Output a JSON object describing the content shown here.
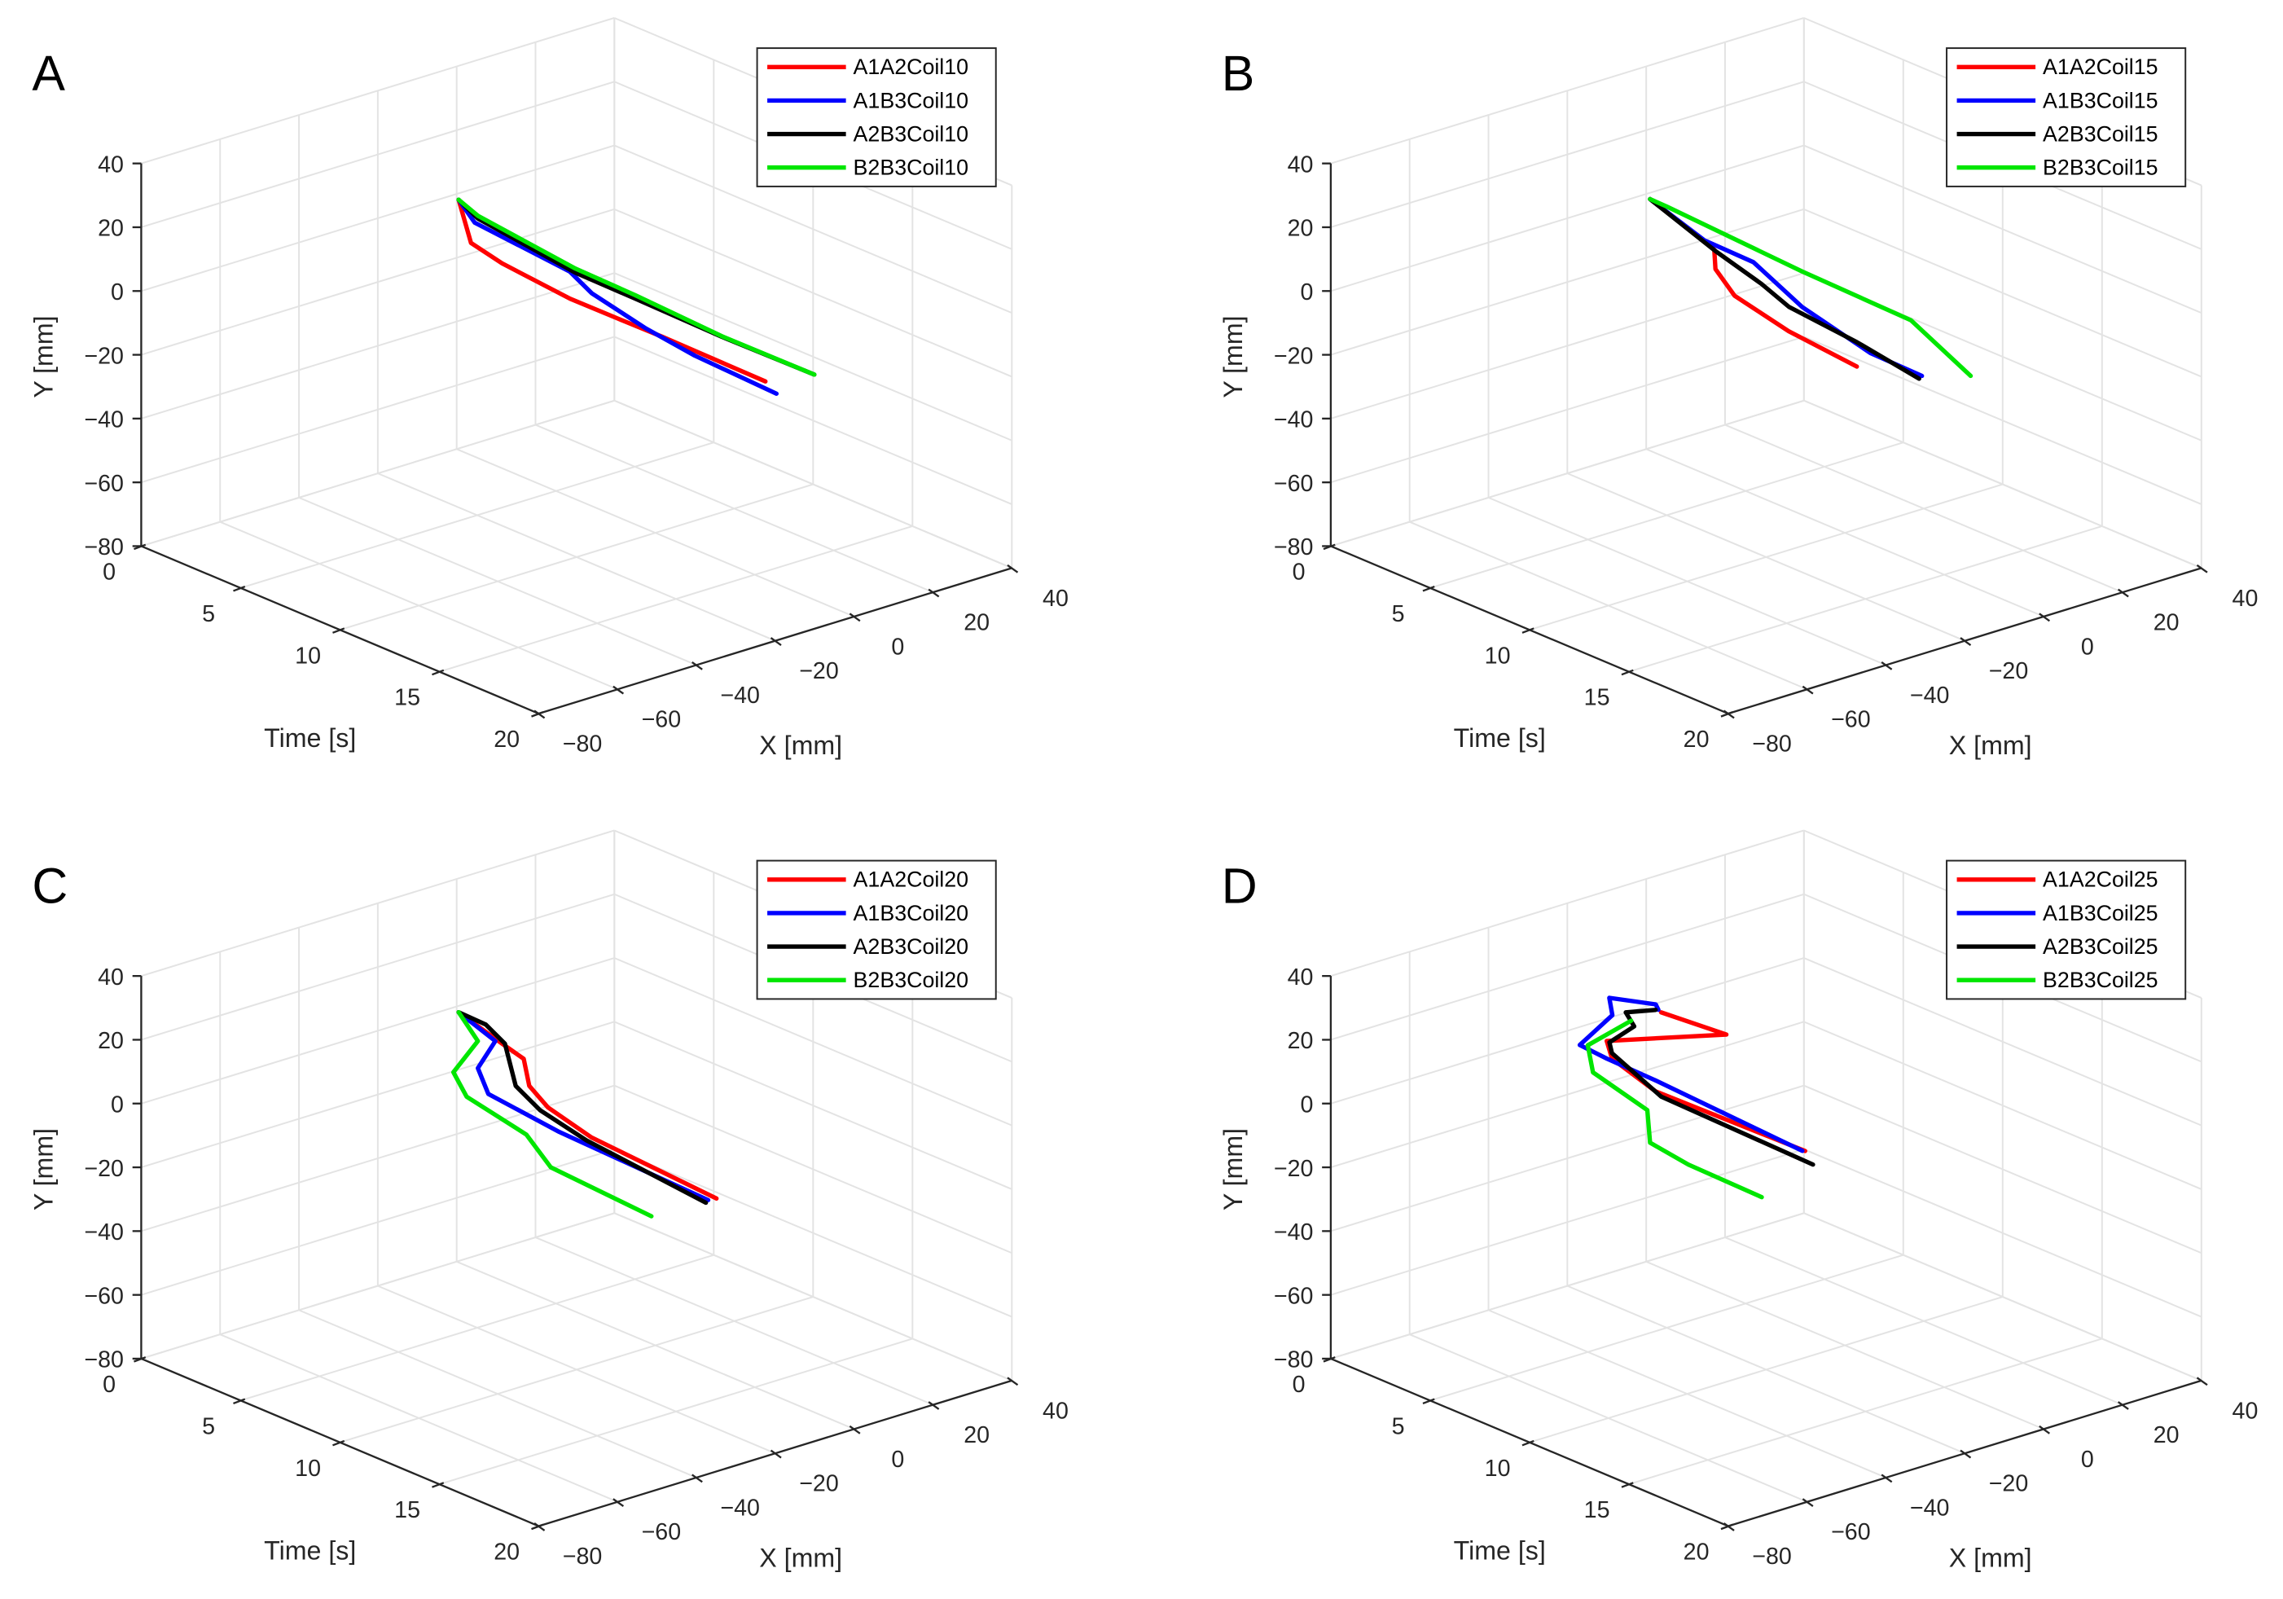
{
  "chart_data": [
    {
      "panel_label": "A",
      "type": "line3d",
      "xlabel": "X [mm]",
      "ylabel": "Y [mm]",
      "tlabel": "Time [s]",
      "tlim": [
        0,
        20
      ],
      "xlim": [
        -80,
        40
      ],
      "ylim": [
        -80,
        40
      ],
      "t_ticks": [
        "0",
        "5",
        "10",
        "15",
        "20"
      ],
      "x_ticks": [
        "−80",
        "−60",
        "−40",
        "−20",
        "0",
        "20",
        "40"
      ],
      "y_ticks": [
        "−80",
        "−60",
        "−40",
        "−20",
        "0",
        "20",
        "40"
      ],
      "grid": true,
      "legend_position": "top-right",
      "series": [
        {
          "name": "A1A2Coil10",
          "color": "#ff0000",
          "t": [
            0,
            0.8,
            2.8,
            7.2,
            10.4,
            13.3,
            20
          ],
          "x": [
            0.5,
            -0.4,
            -2.6,
            -7.5,
            -11.3,
            -14.9,
            -22.5
          ],
          "y": [
            -2,
            -13.1,
            -13.4,
            -11.1,
            -7.6,
            -4.2,
            2.3
          ]
        },
        {
          "name": "A1B3Coil10",
          "color": "#0000ff",
          "t": [
            0,
            1.03,
            7.0,
            8.4,
            11.8,
            14.9,
            20
          ],
          "x": [
            0.5,
            -0.6,
            -6.6,
            -8.1,
            -11.5,
            -14.7,
            -19.7
          ],
          "y": [
            -2,
            -6.1,
            -3.4,
            -6,
            -6.8,
            -6,
            -2.6
          ]
        },
        {
          "name": "A2B3Coil10",
          "color": "#000000",
          "t": [
            0,
            1.07,
            6.57,
            9.93,
            14.8,
            20
          ],
          "x": [
            0.5,
            0,
            -3,
            -4.8,
            -7.3,
            -10.1
          ],
          "y": [
            -2,
            -4.9,
            -6.3,
            -4.9,
            -3.2,
            -0.3
          ]
        },
        {
          "name": "B2B3Coil10",
          "color": "#00e600",
          "t": [
            0,
            1.07,
            6.57,
            9.93,
            14.8,
            20
          ],
          "x": [
            0.5,
            0,
            -3,
            -4.8,
            -7.3,
            -10.1
          ],
          "y": [
            -2,
            -4,
            -5,
            -3.8,
            -3,
            -0.3
          ]
        }
      ]
    },
    {
      "panel_label": "B",
      "type": "line3d",
      "xlabel": "X [mm]",
      "ylabel": "Y [mm]",
      "tlabel": "Time [s]",
      "tlim": [
        0,
        20
      ],
      "xlim": [
        -80,
        40
      ],
      "ylim": [
        -80,
        40
      ],
      "t_ticks": [
        "0",
        "5",
        "10",
        "15",
        "20"
      ],
      "x_ticks": [
        "−80",
        "−60",
        "−40",
        "−20",
        "0",
        "20",
        "40"
      ],
      "y_ticks": [
        "−80",
        "−60",
        "−40",
        "−20",
        "0",
        "20",
        "40"
      ],
      "grid": true,
      "legend_position": "top-right",
      "series": [
        {
          "name": "A1A2Coil15",
          "color": "#ff0000",
          "t": [
            0,
            5.5,
            6.2,
            6.3,
            8.2,
            13.4,
            20
          ],
          "x": [
            1,
            -12.2,
            -14,
            -14.2,
            -18.9,
            -31.4,
            -47.4
          ],
          "y": [
            -2,
            3.7,
            4.1,
            -1.6,
            -3.2,
            4.1,
            16.4
          ]
        },
        {
          "name": "A1B3Coil15",
          "color": "#0000ff",
          "t": [
            0,
            4.0,
            7.6,
            11.2,
            16.2,
            20
          ],
          "x": [
            1,
            -5.4,
            -11.1,
            -16.9,
            -24.8,
            -30.9
          ],
          "y": [
            -2,
            -2,
            2.8,
            0.4,
            2.1,
            7.2
          ]
        },
        {
          "name": "A2B3Coil15",
          "color": "#000000",
          "t": [
            0,
            4.8,
            8.3,
            10.3,
            15.4,
            20
          ],
          "x": [
            1,
            -6.6,
            -12.6,
            -15.7,
            -24.2,
            -31.6
          ],
          "y": [
            -2,
            -2.8,
            -1.6,
            -2.4,
            3.2,
            6.6
          ]
        },
        {
          "name": "B2B3Coil15",
          "color": "#00e600",
          "t": [
            0,
            1.0,
            9.5,
            16.3,
            20
          ],
          "x": [
            1,
            0.1,
            -8.3,
            -15,
            -18.5
          ],
          "y": [
            -2,
            -1.3,
            3.8,
            8.9,
            2.5
          ]
        }
      ]
    },
    {
      "panel_label": "C",
      "type": "line3d",
      "xlabel": "X [mm]",
      "ylabel": "Y [mm]",
      "tlabel": "Time [s]",
      "tlim": [
        0,
        20
      ],
      "xlim": [
        -80,
        40
      ],
      "ylim": [
        -80,
        40
      ],
      "t_ticks": [
        "0",
        "5",
        "10",
        "15",
        "20"
      ],
      "x_ticks": [
        "−80",
        "−60",
        "−40",
        "−20",
        "0",
        "20",
        "40"
      ],
      "y_ticks": [
        "−80",
        "−60",
        "−40",
        "−20",
        "0",
        "20",
        "40"
      ],
      "grid": true,
      "legend_position": "top-right",
      "series": [
        {
          "name": "A1A2Coil20",
          "color": "#ff0000",
          "t": [
            0,
            3.4,
            5.1,
            5.5,
            7.0,
            10.3,
            20
          ],
          "x": [
            0.5,
            -5.6,
            -8.7,
            -9.3,
            -12.1,
            -17.7,
            -34.9
          ],
          "y": [
            -2,
            -0.6,
            0.3,
            -6.9,
            -8.7,
            -7.3,
            5.6
          ]
        },
        {
          "name": "A1B3Coil20",
          "color": "#0000ff",
          "t": [
            0,
            2.5,
            4,
            6,
            10,
            20
          ],
          "x": [
            0.5,
            -2.8,
            -14.8,
            -22.2,
            -24.4,
            -37
          ],
          "y": [
            -2,
            -3.2,
            -3.2,
            -3.2,
            -3.8,
            5.9
          ]
        },
        {
          "name": "A2B3Coil20",
          "color": "#000000",
          "t": [
            0,
            2.2,
            3.7,
            4.6,
            6.6,
            10.3,
            20
          ],
          "x": [
            0.5,
            -3.7,
            -6.4,
            -8.2,
            -12.1,
            -19,
            -37.6
          ],
          "y": [
            -2,
            1.5,
            0.5,
            -9.7,
            -10.6,
            -7.7,
            5.3
          ]
        },
        {
          "name": "B2B3Coil20",
          "color": "#00e600",
          "t": [
            0,
            2,
            4,
            6,
            9,
            12,
            20
          ],
          "x": [
            0.5,
            -4.7,
            -21,
            -27.7,
            -27.7,
            -36.6,
            -51.4
          ],
          "y": [
            -2,
            -3.8,
            -2.1,
            -2,
            -6,
            -5,
            6.3
          ]
        }
      ]
    },
    {
      "panel_label": "D",
      "type": "line3d",
      "xlabel": "X [mm]",
      "ylabel": "Y [mm]",
      "tlabel": "Time [s]",
      "tlim": [
        0,
        20
      ],
      "xlim": [
        -80,
        40
      ],
      "ylim": [
        -80,
        40
      ],
      "t_ticks": [
        "0",
        "5",
        "10",
        "15",
        "20"
      ],
      "x_ticks": [
        "−80",
        "−60",
        "−40",
        "−20",
        "0",
        "20",
        "40"
      ],
      "y_ticks": [
        "−80",
        "−60",
        "−40",
        "−20",
        "0",
        "20",
        "40"
      ],
      "grid": true,
      "legend_position": "top-right",
      "series": [
        {
          "name": "A1A2Coil25",
          "color": "#ff0000",
          "t": [
            0,
            1,
            2,
            4,
            8,
            20
          ],
          "x": [
            3.8,
            15.3,
            -20.1,
            -28.8,
            -37.9,
            -60.5
          ],
          "y": [
            -3.3,
            -12,
            2.1,
            5.1,
            8.8,
            30.2
          ]
        },
        {
          "name": "A1B3Coil25",
          "color": "#0000ff",
          "t": [
            0,
            0.5,
            1.5,
            2.5,
            4,
            6,
            9,
            20
          ],
          "x": [
            3.1,
            -0.1,
            -16.9,
            -21.2,
            -37,
            -40.2,
            -43,
            -61.2
          ],
          "y": [
            -2.2,
            2,
            13.1,
            11.9,
            12.5,
            14.7,
            16.8,
            30.5
          ]
        },
        {
          "name": "A2B3Coil25",
          "color": "#000000",
          "t": [
            0,
            0.5,
            1,
            2,
            3,
            8,
            20
          ],
          "x": [
            2.4,
            -7.7,
            -8.1,
            -19.4,
            -23.8,
            -36.5,
            -58.5
          ],
          "y": [
            -2,
            2.4,
            -0.5,
            1.4,
            2.3,
            6.6,
            25.2
          ]
        },
        {
          "name": "B2B3Coil25",
          "color": "#00e600",
          "t": [
            0,
            1.5,
            3,
            7,
            9,
            12,
            20
          ],
          "x": [
            -3.8,
            -22.4,
            -28.6,
            -35,
            -44.4,
            -49.8,
            -71.5
          ],
          "y": [
            -3,
            0.3,
            -1.9,
            -0.8,
            -2.2,
            0.9,
            19.9
          ]
        }
      ]
    }
  ]
}
